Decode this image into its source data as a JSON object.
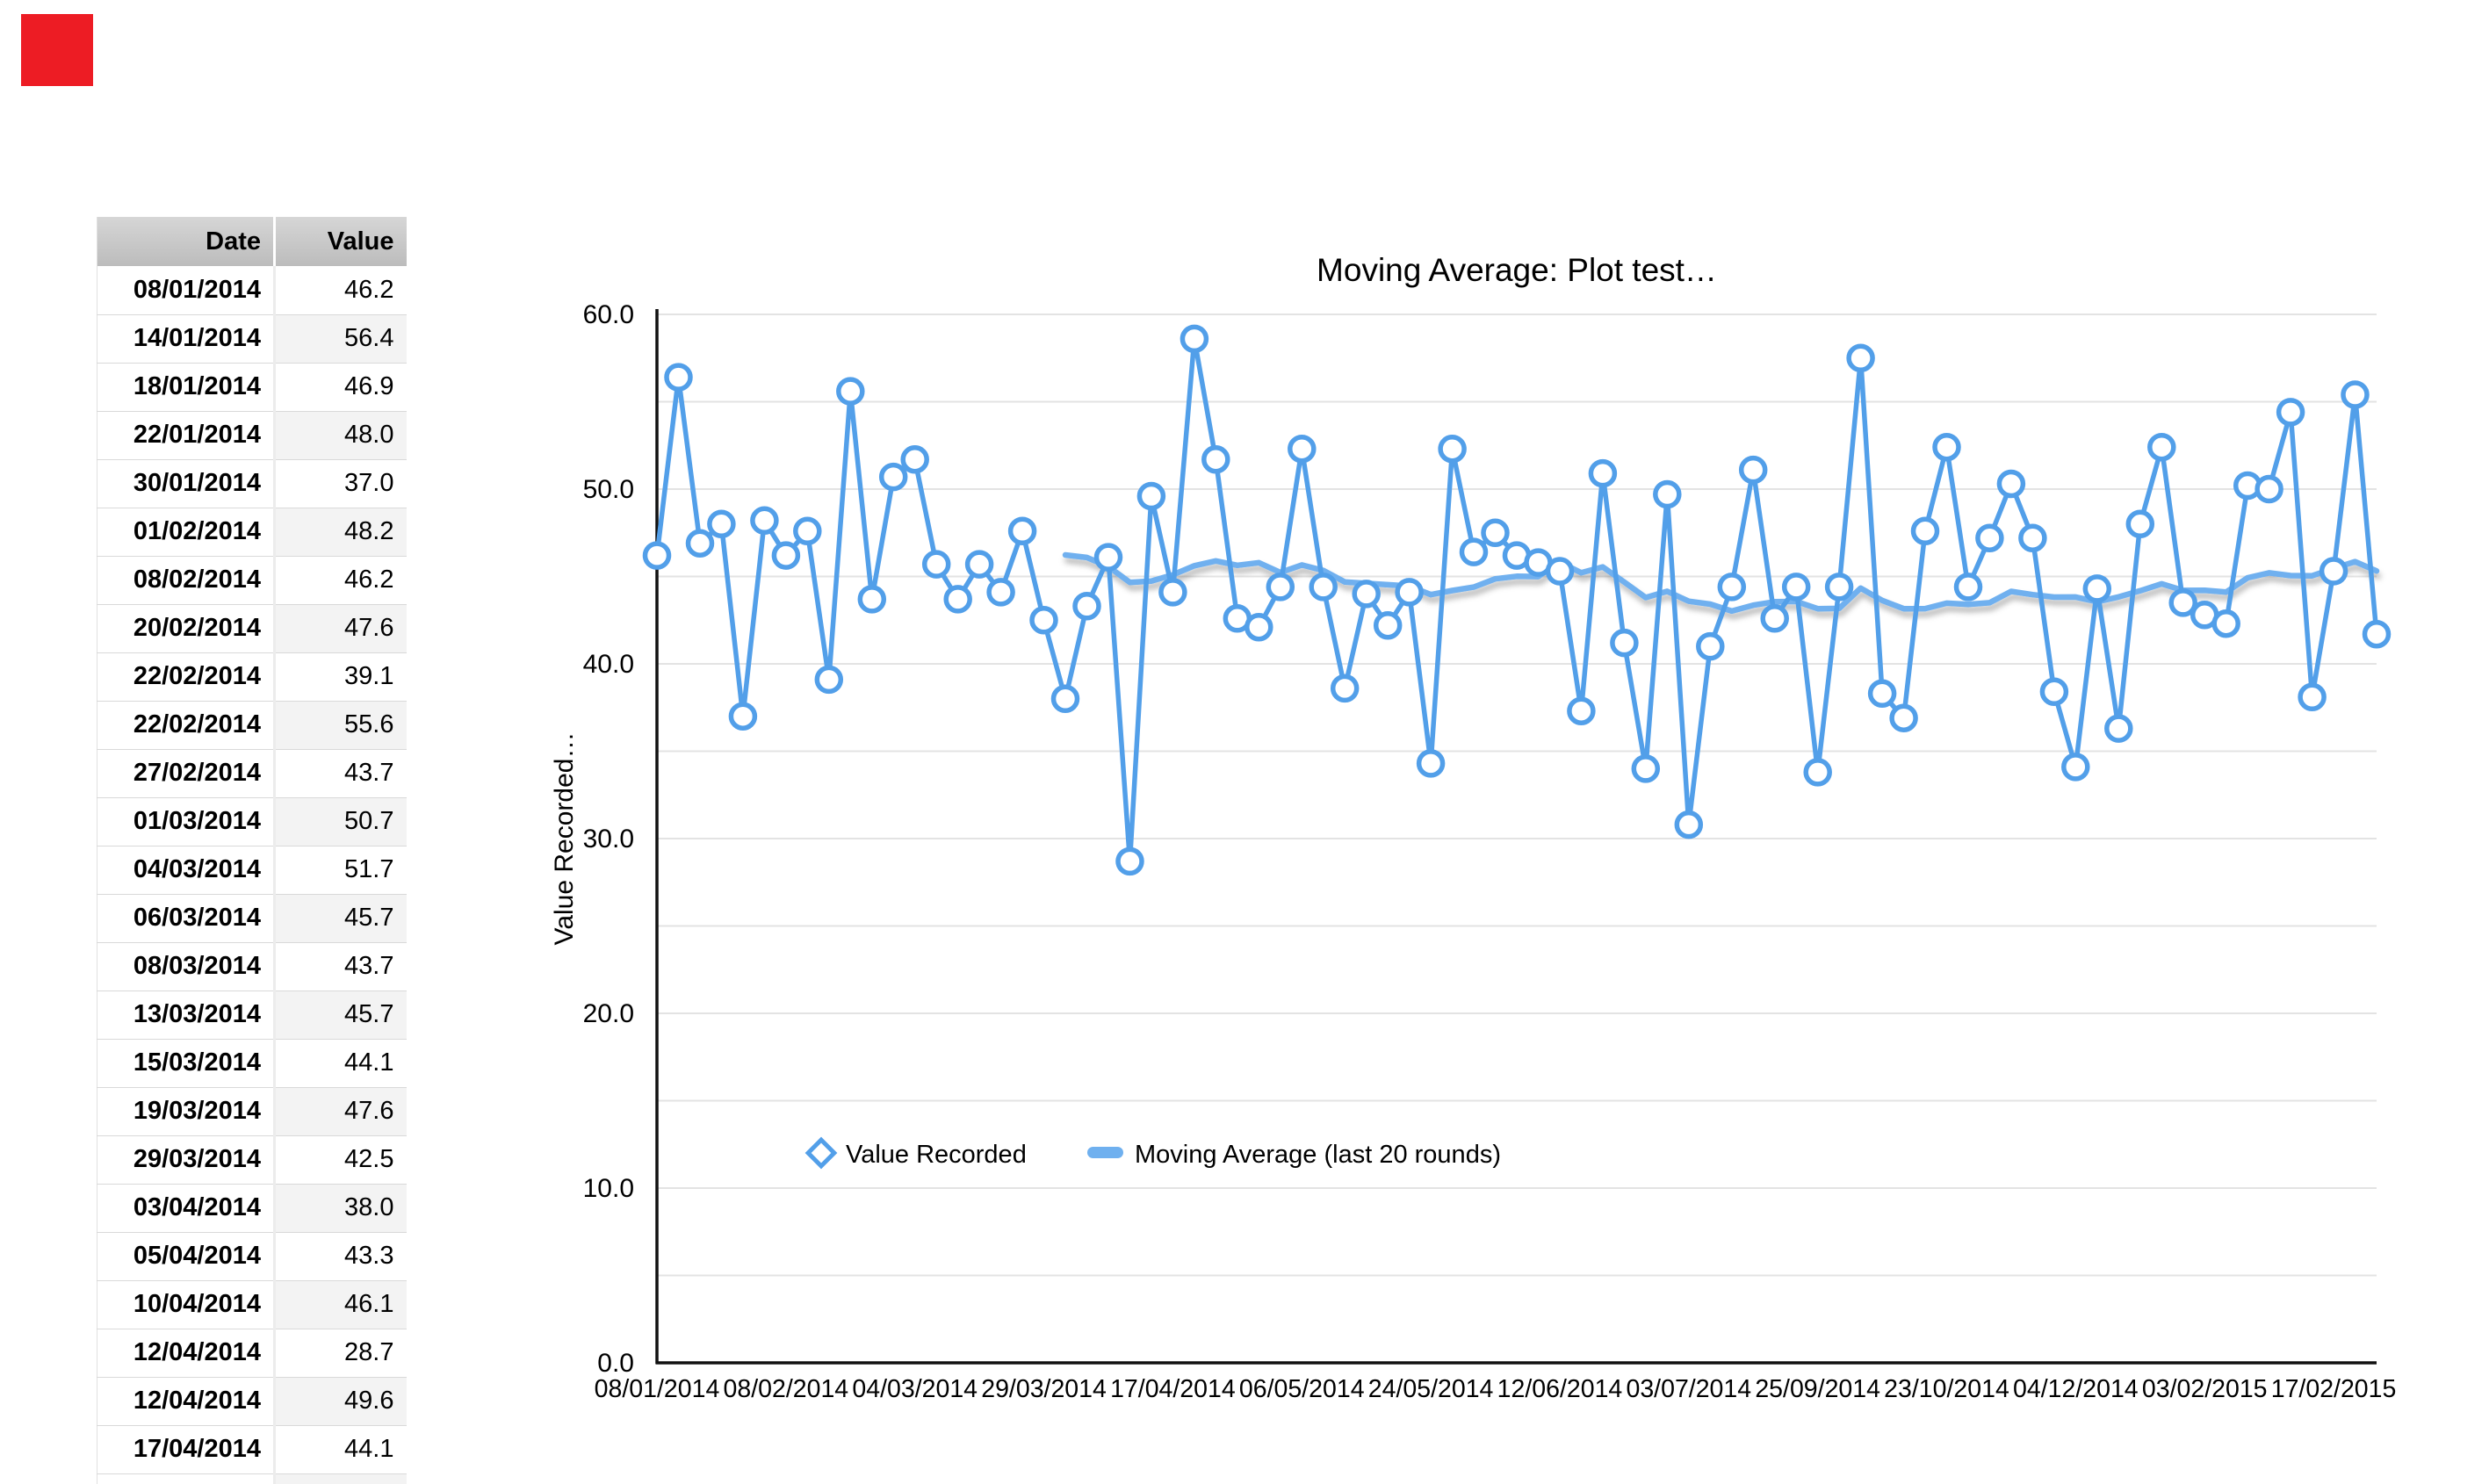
{
  "red_marker": {
    "color": "#ed1c24"
  },
  "table": {
    "headers": {
      "date": "Date",
      "value": "Value"
    },
    "rows": [
      {
        "date": "08/01/2014",
        "value": "46.2"
      },
      {
        "date": "14/01/2014",
        "value": "56.4"
      },
      {
        "date": "18/01/2014",
        "value": "46.9"
      },
      {
        "date": "22/01/2014",
        "value": "48.0"
      },
      {
        "date": "30/01/2014",
        "value": "37.0"
      },
      {
        "date": "01/02/2014",
        "value": "48.2"
      },
      {
        "date": "08/02/2014",
        "value": "46.2"
      },
      {
        "date": "20/02/2014",
        "value": "47.6"
      },
      {
        "date": "22/02/2014",
        "value": "39.1"
      },
      {
        "date": "22/02/2014",
        "value": "55.6"
      },
      {
        "date": "27/02/2014",
        "value": "43.7"
      },
      {
        "date": "01/03/2014",
        "value": "50.7"
      },
      {
        "date": "04/03/2014",
        "value": "51.7"
      },
      {
        "date": "06/03/2014",
        "value": "45.7"
      },
      {
        "date": "08/03/2014",
        "value": "43.7"
      },
      {
        "date": "13/03/2014",
        "value": "45.7"
      },
      {
        "date": "15/03/2014",
        "value": "44.1"
      },
      {
        "date": "19/03/2014",
        "value": "47.6"
      },
      {
        "date": "29/03/2014",
        "value": "42.5"
      },
      {
        "date": "03/04/2014",
        "value": "38.0"
      },
      {
        "date": "05/04/2014",
        "value": "43.3"
      },
      {
        "date": "10/04/2014",
        "value": "46.1"
      },
      {
        "date": "12/04/2014",
        "value": "28.7"
      },
      {
        "date": "12/04/2014",
        "value": "49.6"
      },
      {
        "date": "17/04/2014",
        "value": "44.1"
      },
      {
        "date": "",
        "value": ""
      }
    ]
  },
  "chart_data": {
    "type": "line",
    "title": "Moving Average: Plot test…",
    "xlabel": "",
    "ylabel": "Value Recorded…",
    "ylim": [
      0,
      60
    ],
    "y_tick_labels": [
      "0.0",
      "10.0",
      "20.0",
      "30.0",
      "40.0",
      "50.0",
      "60.0"
    ],
    "grid": "horizontal lines every 5 units",
    "legend_position": "inside-bottom-left",
    "x_tick_labels": [
      "08/01/2014",
      "08/02/2014",
      "04/03/2014",
      "29/03/2014",
      "17/04/2014",
      "06/05/2014",
      "24/05/2014",
      "12/06/2014",
      "03/07/2014",
      "25/09/2014",
      "23/10/2014",
      "04/12/2014",
      "03/02/2015",
      "17/02/2015"
    ],
    "x_tick_point_interval": 6,
    "series": [
      {
        "name": "Value Recorded",
        "marker": "circle",
        "color": "#529fe9",
        "values": [
          46.2,
          56.4,
          46.9,
          48.0,
          37.0,
          48.2,
          46.2,
          47.6,
          39.1,
          55.6,
          43.7,
          50.7,
          51.7,
          45.7,
          43.7,
          45.7,
          44.1,
          47.6,
          42.5,
          38.0,
          43.3,
          46.1,
          28.7,
          49.6,
          44.1,
          58.6,
          51.7,
          42.6,
          42.1,
          44.4,
          52.3,
          44.4,
          38.6,
          44.0,
          42.2,
          44.1,
          34.3,
          52.3,
          46.4,
          47.5,
          46.2,
          45.8,
          45.3,
          37.3,
          50.9,
          41.2,
          34.0,
          49.7,
          30.8,
          41.0,
          44.4,
          51.1,
          42.6,
          44.4,
          33.8,
          44.4,
          57.5,
          38.3,
          36.9,
          47.6,
          52.4,
          44.4,
          47.2,
          50.3,
          47.2,
          38.4,
          34.1,
          44.3,
          36.3,
          48.0,
          52.4,
          43.5,
          42.8,
          42.3,
          50.2,
          50.0,
          54.4,
          38.1,
          45.3,
          55.4,
          41.7
        ]
      },
      {
        "name": "Moving Average (last 20 rounds)",
        "type": "moving_average",
        "window": 20,
        "color": "#6fb0ef"
      }
    ]
  }
}
